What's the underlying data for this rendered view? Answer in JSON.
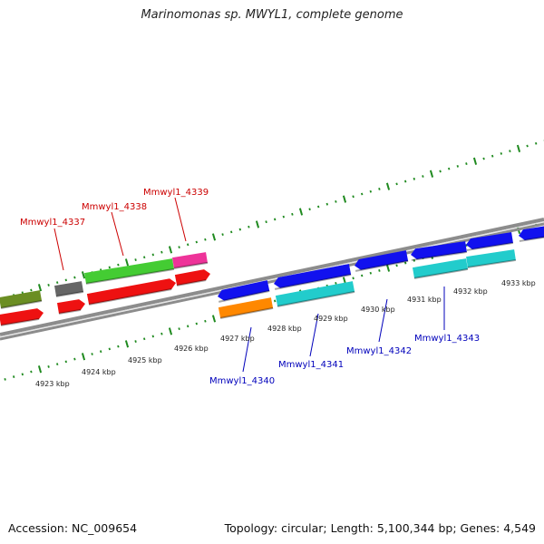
{
  "title": "Marinomonas sp. MWYL1, complete genome",
  "footer": {
    "accession": "Accession: NC_009654",
    "topology": "Topology: circular; Length: 5,100,344 bp; Genes: 4,549"
  },
  "colors": {
    "backbone": "#8c8c8c",
    "ruler": "#1f8a1f",
    "forward_label": "#cc0000",
    "reverse_label": "#0000bb",
    "red": "#ee1111",
    "green": "#44cc33",
    "olive": "#6b8e23",
    "gray": "#666666",
    "pink": "#ee3399",
    "blue": "#1111ee",
    "cyan": "#22cccc",
    "orange": "#ff8800"
  },
  "scale_labels": [
    "4923 kbp",
    "4924 kbp",
    "4925 kbp",
    "4926 kbp",
    "4927 kbp",
    "4928 kbp",
    "4929 kbp",
    "4930 kbp",
    "4931 kbp",
    "4932 kbp",
    "4933 kbp"
  ],
  "gene_labels": [
    {
      "text": "Mmwyl1_4337",
      "color": "forward"
    },
    {
      "text": "Mmwyl1_4338",
      "color": "forward"
    },
    {
      "text": "Mmwyl1_4339",
      "color": "forward"
    },
    {
      "text": "Mmwyl1_4340",
      "color": "reverse"
    },
    {
      "text": "Mmwyl1_4341",
      "color": "reverse"
    },
    {
      "text": "Mmwyl1_4342",
      "color": "reverse"
    },
    {
      "text": "Mmwyl1_4343",
      "color": "reverse"
    }
  ]
}
